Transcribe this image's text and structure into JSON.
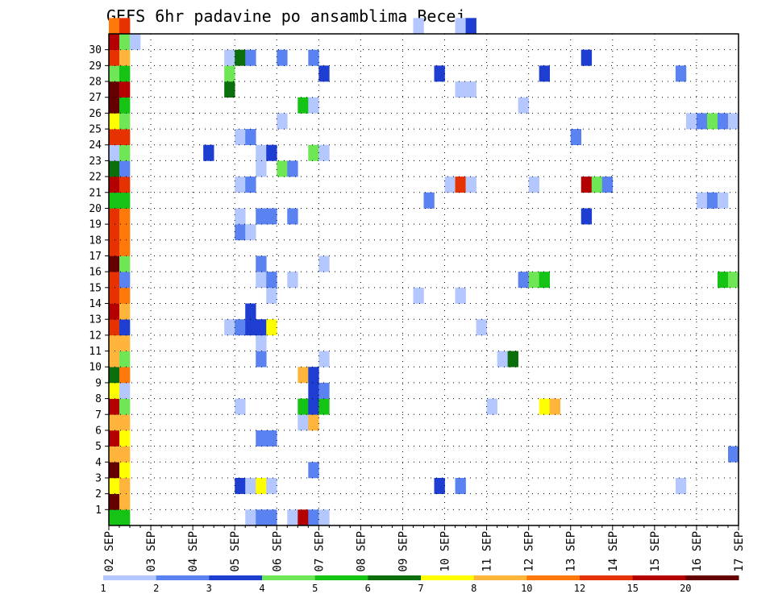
{
  "chart_data": {
    "type": "heatmap",
    "title": "GEFS 6hr padavine po ansamblima Becej",
    "ylabel": "",
    "xlabel": "",
    "y_ticks": [
      1,
      2,
      3,
      4,
      5,
      6,
      7,
      8,
      9,
      10,
      11,
      12,
      13,
      14,
      15,
      16,
      17,
      18,
      19,
      20,
      21,
      22,
      23,
      24,
      25,
      26,
      27,
      28,
      29,
      30
    ],
    "y_range": [
      0,
      30
    ],
    "x_ticks": [
      "02 SEP",
      "03 SEP",
      "04 SEP",
      "05 SEP",
      "06 SEP",
      "07 SEP",
      "08 SEP",
      "09 SEP",
      "10 SEP",
      "11 SEP",
      "12 SEP",
      "13 SEP",
      "14 SEP",
      "15 SEP",
      "16 SEP",
      "17 SEP"
    ],
    "x_range_steps": [
      0,
      60
    ],
    "steps_per_day": 4,
    "grid": true,
    "legend": {
      "position": "bottom",
      "labels": [
        "1",
        "2",
        "3",
        "4",
        "5",
        "6",
        "7",
        "8",
        "10",
        "12",
        "15",
        "20"
      ],
      "colors": [
        "#b4c8ff",
        "#5a82f0",
        "#1e3ed2",
        "#6ee655",
        "#14c314",
        "#0a6e0a",
        "#ffff00",
        "#ffb43c",
        "#ff780a",
        "#e63200",
        "#b40000",
        "#640000"
      ]
    },
    "cells": [
      {
        "member": 0,
        "step": 0,
        "color": "#14c314"
      },
      {
        "member": 0,
        "step": 1,
        "color": "#14c314"
      },
      {
        "member": 1,
        "step": 0,
        "color": "#640000"
      },
      {
        "member": 1,
        "step": 1,
        "color": "#ffb43c"
      },
      {
        "member": 2,
        "step": 0,
        "color": "#ffff00"
      },
      {
        "member": 2,
        "step": 1,
        "color": "#ffb43c"
      },
      {
        "member": 3,
        "step": 0,
        "color": "#640000"
      },
      {
        "member": 3,
        "step": 1,
        "color": "#ffff00"
      },
      {
        "member": 4,
        "step": 0,
        "color": "#ffb43c"
      },
      {
        "member": 4,
        "step": 1,
        "color": "#ffb43c"
      },
      {
        "member": 5,
        "step": 0,
        "color": "#b40000"
      },
      {
        "member": 5,
        "step": 1,
        "color": "#ffff00"
      },
      {
        "member": 6,
        "step": 0,
        "color": "#ffb43c"
      },
      {
        "member": 6,
        "step": 1,
        "color": "#ffb43c"
      },
      {
        "member": 7,
        "step": 0,
        "color": "#b40000"
      },
      {
        "member": 7,
        "step": 1,
        "color": "#6ee655"
      },
      {
        "member": 8,
        "step": 0,
        "color": "#ffff00"
      },
      {
        "member": 8,
        "step": 1,
        "color": "#b4c8ff"
      },
      {
        "member": 9,
        "step": 0,
        "color": "#0a6e0a"
      },
      {
        "member": 9,
        "step": 1,
        "color": "#ff780a"
      },
      {
        "member": 10,
        "step": 0,
        "color": "#ffb43c"
      },
      {
        "member": 10,
        "step": 1,
        "color": "#6ee655"
      },
      {
        "member": 11,
        "step": 0,
        "color": "#ffb43c"
      },
      {
        "member": 11,
        "step": 1,
        "color": "#ffb43c"
      },
      {
        "member": 12,
        "step": 0,
        "color": "#e63200"
      },
      {
        "member": 12,
        "step": 1,
        "color": "#1e3ed2"
      },
      {
        "member": 13,
        "step": 0,
        "color": "#b40000"
      },
      {
        "member": 13,
        "step": 1,
        "color": "#ffb43c"
      },
      {
        "member": 14,
        "step": 0,
        "color": "#e63200"
      },
      {
        "member": 14,
        "step": 1,
        "color": "#ff780a"
      },
      {
        "member": 15,
        "step": 0,
        "color": "#e63200"
      },
      {
        "member": 15,
        "step": 1,
        "color": "#5a82f0"
      },
      {
        "member": 16,
        "step": 0,
        "color": "#640000"
      },
      {
        "member": 16,
        "step": 1,
        "color": "#6ee655"
      },
      {
        "member": 17,
        "step": 0,
        "color": "#e63200"
      },
      {
        "member": 17,
        "step": 1,
        "color": "#ff780a"
      },
      {
        "member": 18,
        "step": 0,
        "color": "#e63200"
      },
      {
        "member": 18,
        "step": 1,
        "color": "#ff780a"
      },
      {
        "member": 19,
        "step": 0,
        "color": "#e63200"
      },
      {
        "member": 19,
        "step": 1,
        "color": "#ff780a"
      },
      {
        "member": 20,
        "step": 0,
        "color": "#14c314"
      },
      {
        "member": 20,
        "step": 1,
        "color": "#14c314"
      },
      {
        "member": 21,
        "step": 0,
        "color": "#b40000"
      },
      {
        "member": 21,
        "step": 1,
        "color": "#e63200"
      },
      {
        "member": 22,
        "step": 0,
        "color": "#0a6e0a"
      },
      {
        "member": 22,
        "step": 1,
        "color": "#5a82f0"
      },
      {
        "member": 23,
        "step": 0,
        "color": "#b4c8ff"
      },
      {
        "member": 23,
        "step": 1,
        "color": "#6ee655"
      },
      {
        "member": 24,
        "step": 0,
        "color": "#e63200"
      },
      {
        "member": 24,
        "step": 1,
        "color": "#e63200"
      },
      {
        "member": 25,
        "step": 0,
        "color": "#ffff00"
      },
      {
        "member": 25,
        "step": 1,
        "color": "#6ee655"
      },
      {
        "member": 26,
        "step": 0,
        "color": "#640000"
      },
      {
        "member": 26,
        "step": 1,
        "color": "#14c314"
      },
      {
        "member": 27,
        "step": 0,
        "color": "#640000"
      },
      {
        "member": 27,
        "step": 1,
        "color": "#b40000"
      },
      {
        "member": 28,
        "step": 0,
        "color": "#6ee655"
      },
      {
        "member": 28,
        "step": 1,
        "color": "#14c314"
      },
      {
        "member": 29,
        "step": 0,
        "color": "#e63200"
      },
      {
        "member": 29,
        "step": 1,
        "color": "#ffb43c"
      },
      {
        "member": 30,
        "step": 0,
        "color": "#b40000"
      },
      {
        "member": 30,
        "step": 1,
        "color": "#6ee655"
      },
      {
        "member": 31,
        "step": 0,
        "color": "#ff780a"
      },
      {
        "member": 31,
        "step": 1,
        "color": "#e63200"
      },
      {
        "member": 0,
        "step": 13,
        "color": "#b4c8ff"
      },
      {
        "member": 0,
        "step": 14,
        "color": "#5a82f0"
      },
      {
        "member": 0,
        "step": 15,
        "color": "#5a82f0"
      },
      {
        "member": 0,
        "step": 17,
        "color": "#b4c8ff"
      },
      {
        "member": 0,
        "step": 18,
        "color": "#b40000"
      },
      {
        "member": 0,
        "step": 19,
        "color": "#5a82f0"
      },
      {
        "member": 0,
        "step": 20,
        "color": "#b4c8ff"
      },
      {
        "member": 2,
        "step": 12,
        "color": "#1e3ed2"
      },
      {
        "member": 2,
        "step": 13,
        "color": "#b4c8ff"
      },
      {
        "member": 2,
        "step": 14,
        "color": "#ffff00"
      },
      {
        "member": 2,
        "step": 15,
        "color": "#b4c8ff"
      },
      {
        "member": 2,
        "step": 31,
        "color": "#1e3ed2"
      },
      {
        "member": 2,
        "step": 33,
        "color": "#5a82f0"
      },
      {
        "member": 2,
        "step": 54,
        "color": "#b4c8ff"
      },
      {
        "member": 3,
        "step": 19,
        "color": "#5a82f0"
      },
      {
        "member": 4,
        "step": 59,
        "color": "#5a82f0"
      },
      {
        "member": 5,
        "step": 14,
        "color": "#5a82f0"
      },
      {
        "member": 5,
        "step": 15,
        "color": "#5a82f0"
      },
      {
        "member": 6,
        "step": 18,
        "color": "#b4c8ff"
      },
      {
        "member": 6,
        "step": 19,
        "color": "#ffb43c"
      },
      {
        "member": 7,
        "step": 12,
        "color": "#b4c8ff"
      },
      {
        "member": 7,
        "step": 18,
        "color": "#14c314"
      },
      {
        "member": 7,
        "step": 19,
        "color": "#1e3ed2"
      },
      {
        "member": 7,
        "step": 20,
        "color": "#14c314"
      },
      {
        "member": 7,
        "step": 36,
        "color": "#b4c8ff"
      },
      {
        "member": 7,
        "step": 41,
        "color": "#ffff00"
      },
      {
        "member": 7,
        "step": 42,
        "color": "#ffb43c"
      },
      {
        "member": 8,
        "step": 19,
        "color": "#1e3ed2"
      },
      {
        "member": 8,
        "step": 20,
        "color": "#5a82f0"
      },
      {
        "member": 9,
        "step": 18,
        "color": "#ffb43c"
      },
      {
        "member": 9,
        "step": 19,
        "color": "#1e3ed2"
      },
      {
        "member": 10,
        "step": 14,
        "color": "#5a82f0"
      },
      {
        "member": 10,
        "step": 20,
        "color": "#b4c8ff"
      },
      {
        "member": 10,
        "step": 37,
        "color": "#b4c8ff"
      },
      {
        "member": 10,
        "step": 38,
        "color": "#0a6e0a"
      },
      {
        "member": 11,
        "step": 14,
        "color": "#b4c8ff"
      },
      {
        "member": 12,
        "step": 11,
        "color": "#b4c8ff"
      },
      {
        "member": 12,
        "step": 12,
        "color": "#5a82f0"
      },
      {
        "member": 12,
        "step": 13,
        "color": "#1e3ed2"
      },
      {
        "member": 12,
        "step": 14,
        "color": "#1e3ed2"
      },
      {
        "member": 12,
        "step": 15,
        "color": "#ffff00"
      },
      {
        "member": 12,
        "step": 35,
        "color": "#b4c8ff"
      },
      {
        "member": 13,
        "step": 13,
        "color": "#1e3ed2"
      },
      {
        "member": 14,
        "step": 15,
        "color": "#b4c8ff"
      },
      {
        "member": 14,
        "step": 29,
        "color": "#b4c8ff"
      },
      {
        "member": 14,
        "step": 33,
        "color": "#b4c8ff"
      },
      {
        "member": 15,
        "step": 14,
        "color": "#b4c8ff"
      },
      {
        "member": 15,
        "step": 15,
        "color": "#5a82f0"
      },
      {
        "member": 15,
        "step": 17,
        "color": "#b4c8ff"
      },
      {
        "member": 15,
        "step": 39,
        "color": "#5a82f0"
      },
      {
        "member": 15,
        "step": 40,
        "color": "#6ee655"
      },
      {
        "member": 15,
        "step": 41,
        "color": "#14c314"
      },
      {
        "member": 15,
        "step": 58,
        "color": "#14c314"
      },
      {
        "member": 15,
        "step": 59,
        "color": "#6ee655"
      },
      {
        "member": 16,
        "step": 14,
        "color": "#5a82f0"
      },
      {
        "member": 16,
        "step": 20,
        "color": "#b4c8ff"
      },
      {
        "member": 18,
        "step": 12,
        "color": "#5a82f0"
      },
      {
        "member": 18,
        "step": 13,
        "color": "#b4c8ff"
      },
      {
        "member": 19,
        "step": 12,
        "color": "#b4c8ff"
      },
      {
        "member": 19,
        "step": 14,
        "color": "#5a82f0"
      },
      {
        "member": 19,
        "step": 15,
        "color": "#5a82f0"
      },
      {
        "member": 19,
        "step": 17,
        "color": "#5a82f0"
      },
      {
        "member": 19,
        "step": 45,
        "color": "#1e3ed2"
      },
      {
        "member": 20,
        "step": 30,
        "color": "#5a82f0"
      },
      {
        "member": 20,
        "step": 56,
        "color": "#b4c8ff"
      },
      {
        "member": 20,
        "step": 57,
        "color": "#5a82f0"
      },
      {
        "member": 20,
        "step": 58,
        "color": "#b4c8ff"
      },
      {
        "member": 21,
        "step": 12,
        "color": "#b4c8ff"
      },
      {
        "member": 21,
        "step": 13,
        "color": "#5a82f0"
      },
      {
        "member": 21,
        "step": 32,
        "color": "#b4c8ff"
      },
      {
        "member": 21,
        "step": 33,
        "color": "#e63200"
      },
      {
        "member": 21,
        "step": 34,
        "color": "#b4c8ff"
      },
      {
        "member": 21,
        "step": 40,
        "color": "#b4c8ff"
      },
      {
        "member": 21,
        "step": 45,
        "color": "#b40000"
      },
      {
        "member": 21,
        "step": 46,
        "color": "#6ee655"
      },
      {
        "member": 21,
        "step": 47,
        "color": "#5a82f0"
      },
      {
        "member": 22,
        "step": 14,
        "color": "#b4c8ff"
      },
      {
        "member": 22,
        "step": 16,
        "color": "#6ee655"
      },
      {
        "member": 22,
        "step": 17,
        "color": "#5a82f0"
      },
      {
        "member": 23,
        "step": 9,
        "color": "#1e3ed2"
      },
      {
        "member": 23,
        "step": 14,
        "color": "#b4c8ff"
      },
      {
        "member": 23,
        "step": 15,
        "color": "#1e3ed2"
      },
      {
        "member": 23,
        "step": 19,
        "color": "#6ee655"
      },
      {
        "member": 23,
        "step": 20,
        "color": "#b4c8ff"
      },
      {
        "member": 24,
        "step": 12,
        "color": "#b4c8ff"
      },
      {
        "member": 24,
        "step": 13,
        "color": "#5a82f0"
      },
      {
        "member": 24,
        "step": 44,
        "color": "#5a82f0"
      },
      {
        "member": 25,
        "step": 16,
        "color": "#b4c8ff"
      },
      {
        "member": 25,
        "step": 55,
        "color": "#b4c8ff"
      },
      {
        "member": 25,
        "step": 56,
        "color": "#5a82f0"
      },
      {
        "member": 25,
        "step": 57,
        "color": "#6ee655"
      },
      {
        "member": 25,
        "step": 58,
        "color": "#5a82f0"
      },
      {
        "member": 25,
        "step": 59,
        "color": "#b4c8ff"
      },
      {
        "member": 26,
        "step": 18,
        "color": "#14c314"
      },
      {
        "member": 26,
        "step": 19,
        "color": "#b4c8ff"
      },
      {
        "member": 26,
        "step": 39,
        "color": "#b4c8ff"
      },
      {
        "member": 27,
        "step": 11,
        "color": "#0a6e0a"
      },
      {
        "member": 27,
        "step": 33,
        "color": "#b4c8ff"
      },
      {
        "member": 27,
        "step": 34,
        "color": "#b4c8ff"
      },
      {
        "member": 28,
        "step": 11,
        "color": "#6ee655"
      },
      {
        "member": 28,
        "step": 20,
        "color": "#1e3ed2"
      },
      {
        "member": 28,
        "step": 31,
        "color": "#1e3ed2"
      },
      {
        "member": 28,
        "step": 41,
        "color": "#1e3ed2"
      },
      {
        "member": 28,
        "step": 54,
        "color": "#5a82f0"
      },
      {
        "member": 29,
        "step": 11,
        "color": "#b4c8ff"
      },
      {
        "member": 29,
        "step": 12,
        "color": "#0a6e0a"
      },
      {
        "member": 29,
        "step": 13,
        "color": "#5a82f0"
      },
      {
        "member": 29,
        "step": 16,
        "color": "#5a82f0"
      },
      {
        "member": 29,
        "step": 19,
        "color": "#5a82f0"
      },
      {
        "member": 29,
        "step": 45,
        "color": "#1e3ed2"
      },
      {
        "member": 30,
        "step": 2,
        "color": "#b4c8ff"
      },
      {
        "member": 31,
        "step": 29,
        "color": "#b4c8ff"
      },
      {
        "member": 31,
        "step": 33,
        "color": "#b4c8ff"
      },
      {
        "member": 31,
        "step": 34,
        "color": "#1e3ed2"
      }
    ]
  }
}
